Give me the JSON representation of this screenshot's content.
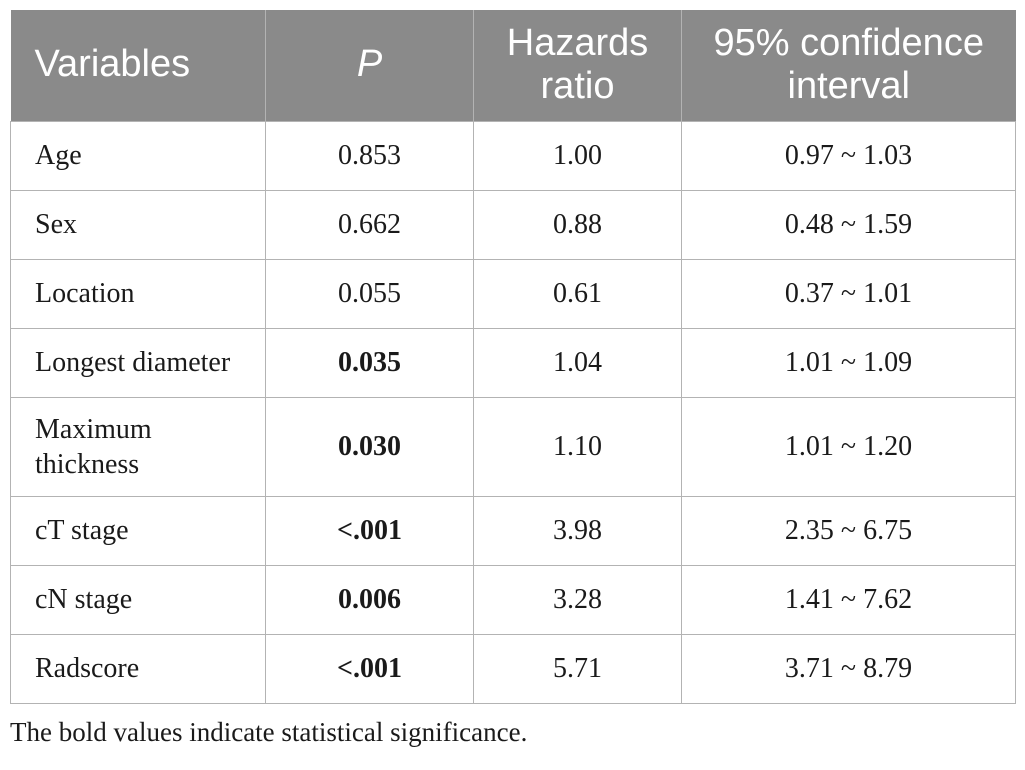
{
  "table": {
    "columns": [
      {
        "label": "Variables"
      },
      {
        "label": "P"
      },
      {
        "label": "Hazards ratio"
      },
      {
        "label": "95% confidence interval"
      }
    ],
    "rows": [
      {
        "variable": "Age",
        "p": "0.853",
        "p_bold": false,
        "hazards_ratio": "1.00",
        "confidence_interval": "0.97 ~ 1.03"
      },
      {
        "variable": "Sex",
        "p": "0.662",
        "p_bold": false,
        "hazards_ratio": "0.88",
        "confidence_interval": "0.48 ~ 1.59"
      },
      {
        "variable": "Location",
        "p": "0.055",
        "p_bold": false,
        "hazards_ratio": "0.61",
        "confidence_interval": "0.37 ~ 1.01"
      },
      {
        "variable": "Longest diameter",
        "p": "0.035",
        "p_bold": true,
        "hazards_ratio": "1.04",
        "confidence_interval": "1.01 ~ 1.09"
      },
      {
        "variable": "Maximum thickness",
        "p": "0.030",
        "p_bold": true,
        "hazards_ratio": "1.10",
        "confidence_interval": "1.01 ~ 1.20"
      },
      {
        "variable": "cT stage",
        "p": "<.001",
        "p_bold": true,
        "hazards_ratio": "3.98",
        "confidence_interval": "2.35 ~ 6.75"
      },
      {
        "variable": "cN stage",
        "p": "0.006",
        "p_bold": true,
        "hazards_ratio": "3.28",
        "confidence_interval": "1.41 ~ 7.62"
      },
      {
        "variable": "Radscore",
        "p": "<.001",
        "p_bold": true,
        "hazards_ratio": "5.71",
        "confidence_interval": "3.71 ~ 8.79"
      }
    ],
    "footnote": "The bold values indicate statistical significance."
  },
  "colors": {
    "header_bg": "#8a8a8a",
    "header_text": "#ffffff",
    "border": "#b3b3b3",
    "body_text": "#1a1a1a",
    "page_bg": "#ffffff"
  }
}
